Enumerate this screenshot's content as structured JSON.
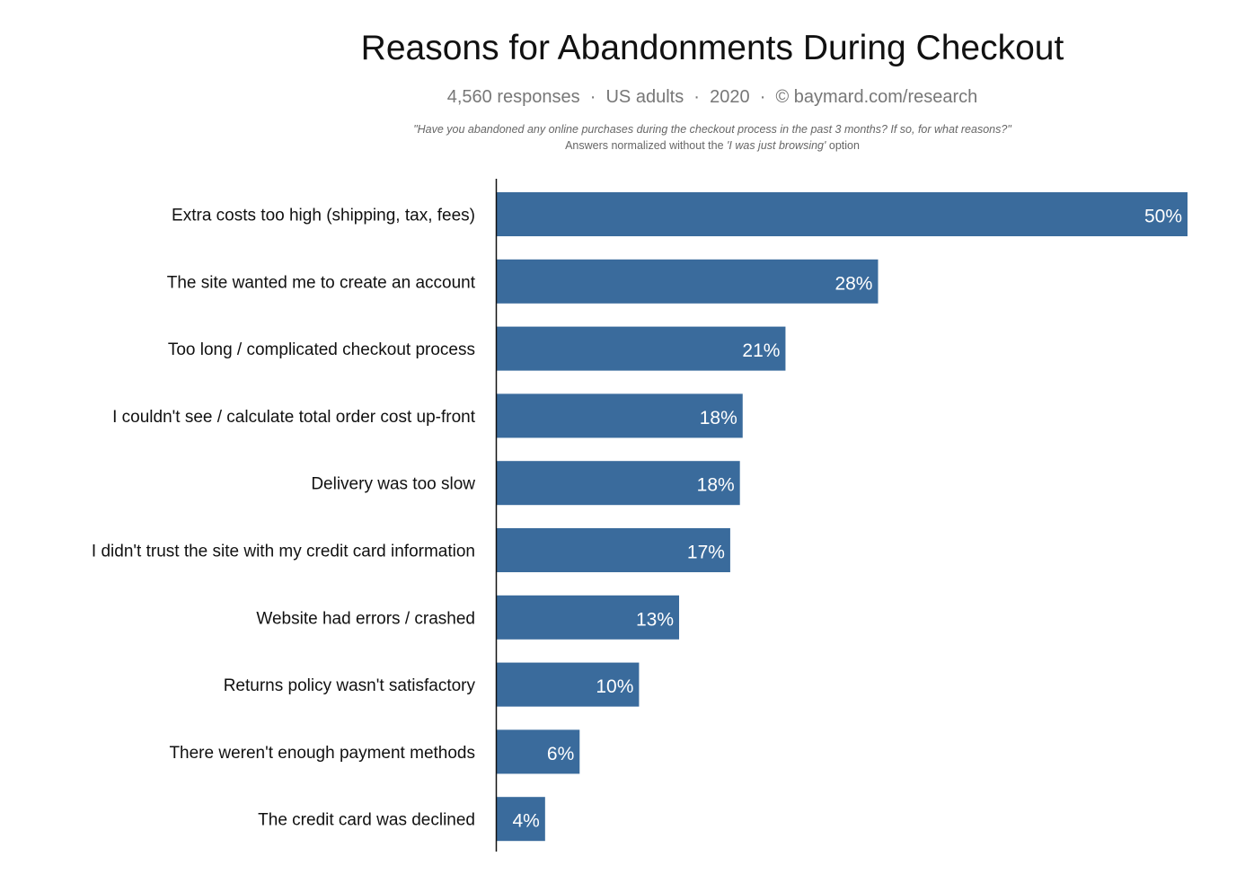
{
  "chart_data": {
    "type": "bar",
    "orientation": "horizontal",
    "title": "Reasons for Abandonments During Checkout",
    "subtitle": "4,560 responses  ·  US adults  ·  2020  ·  © baymard.com/research",
    "question": "\"Have you abandoned any online purchases during the checkout process in the past 3 months? If so, for what reasons?\"",
    "note_prefix": "Answers normalized without the ",
    "note_italic": "'I was just browsing'",
    "note_suffix": " option",
    "categories": [
      "Extra costs too high (shipping, tax, fees)",
      "The site wanted me to create an account",
      "Too long / complicated checkout process",
      "I couldn't see / calculate total order cost up-front",
      "Delivery was too slow",
      "I didn't trust the site with my credit card information",
      "Website had errors / crashed",
      "Returns policy wasn't satisfactory",
      "There weren't enough payment methods",
      "The credit card was declined"
    ],
    "values": [
      50,
      27.6,
      20.9,
      17.8,
      17.6,
      16.9,
      13.2,
      10.3,
      6,
      3.5
    ],
    "labels": [
      "50%",
      "28%",
      "21%",
      "18%",
      "18%",
      "17%",
      "13%",
      "10%",
      "6%",
      "4%"
    ],
    "xlim": [
      0,
      50
    ],
    "grid": false,
    "legend": "none",
    "bar_color": "#3a6b9c"
  }
}
